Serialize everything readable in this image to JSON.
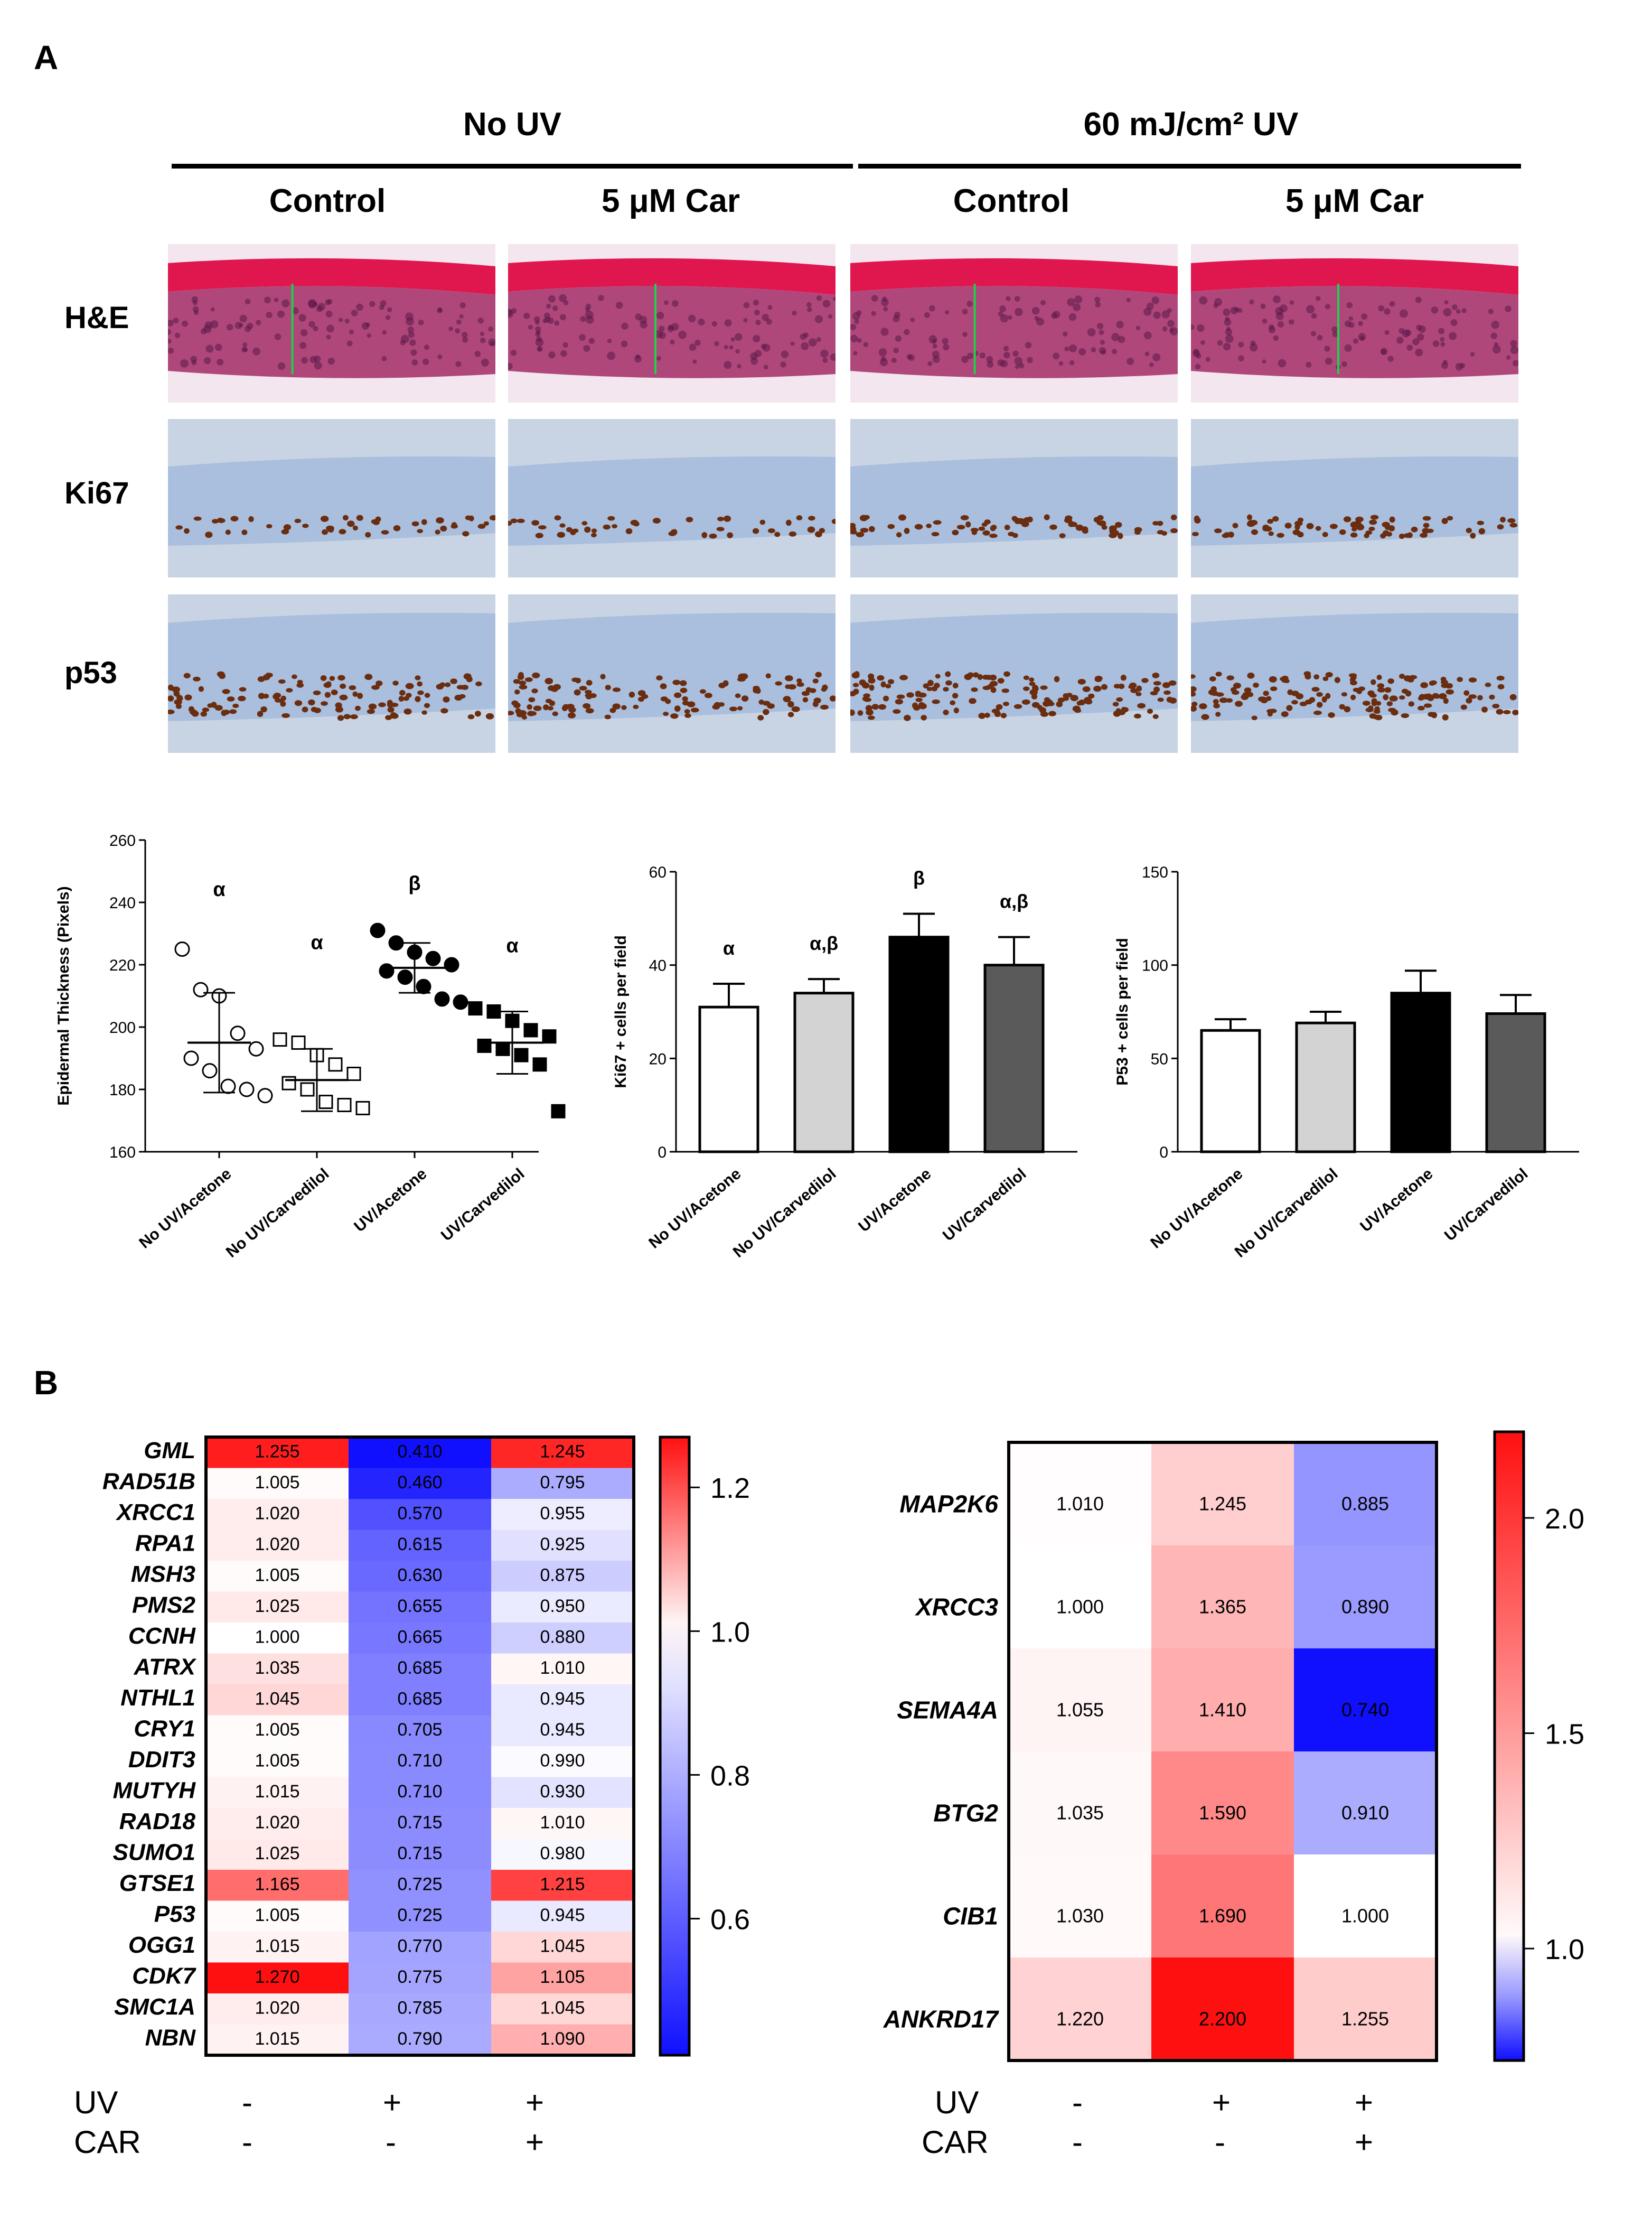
{
  "panel_a": {
    "letter": "A",
    "group_headers": [
      "No UV",
      "60 mJ/cm² UV"
    ],
    "column_headers": [
      "Control",
      "5 μM Car",
      "Control",
      "5 μM Car"
    ],
    "row_labels": [
      "H&E",
      "Ki67",
      "p53"
    ]
  },
  "panel_b": {
    "letter": "B",
    "row_labels": {
      "uv": "UV",
      "car": "CAR"
    },
    "left_conditions": {
      "uv": [
        "-",
        "+",
        "+"
      ],
      "car": [
        "-",
        "-",
        "+"
      ]
    },
    "right_conditions": {
      "uv": [
        "-",
        "+",
        "+"
      ],
      "car": [
        "-",
        "-",
        "+"
      ]
    }
  },
  "colors": {
    "he_top": "#e0174e",
    "he_body": "#b0477a",
    "ihc_bg": "#c8d4e3",
    "ihc_epi": "#a9bfdd",
    "nuclei": "#6b2d10",
    "bar_light": "#d3d3d3",
    "bar_dark": "#5a5a5a",
    "heat_red": "#ff1010",
    "heat_blue": "#1010ff"
  },
  "chart_data": [
    {
      "type": "scatter",
      "ylabel": "Epidermal Thickness (Pixels)",
      "ylim": [
        160,
        260
      ],
      "yticks": [
        160,
        180,
        200,
        220,
        240,
        260
      ],
      "categories": [
        "No UV/Acetone",
        "No UV/Carvedilol",
        "UV/Acetone",
        "UV/Carvedilol"
      ],
      "markers": [
        "open-circle",
        "open-square",
        "filled-circle",
        "filled-square"
      ],
      "means": [
        195,
        183,
        219,
        195
      ],
      "sd": [
        16,
        10,
        8,
        10
      ],
      "letters": [
        "α",
        "α",
        "β",
        "α"
      ],
      "points": [
        [
          225,
          212,
          210,
          198,
          193,
          190,
          186,
          181,
          180,
          178
        ],
        [
          196,
          195,
          191,
          188,
          185,
          182,
          180,
          176,
          175,
          174
        ],
        [
          231,
          227,
          224,
          222,
          220,
          218,
          216,
          213,
          209,
          208
        ],
        [
          206,
          205,
          202,
          199,
          197,
          194,
          193,
          191,
          188,
          173
        ]
      ]
    },
    {
      "type": "bar",
      "ylabel": "Ki67 + cells per field",
      "ylim": [
        0,
        60
      ],
      "yticks": [
        0,
        20,
        40,
        60
      ],
      "categories": [
        "No UV/Acetone",
        "No UV/Carvedilol",
        "UV/Acetone",
        "UV/Carvedilol"
      ],
      "values": [
        31,
        34,
        46,
        40
      ],
      "errors": [
        5,
        3,
        5,
        6
      ],
      "letters": [
        "α",
        "α,β",
        "β",
        "α,β"
      ]
    },
    {
      "type": "bar",
      "ylabel": "P53 + cells per field",
      "ylim": [
        0,
        150
      ],
      "yticks": [
        0,
        50,
        100,
        150
      ],
      "categories": [
        "No UV/Acetone",
        "No UV/Carvedilol",
        "UV/Acetone",
        "UV/Carvedilol"
      ],
      "values": [
        65,
        69,
        85,
        74
      ],
      "errors": [
        6,
        6,
        12,
        10
      ]
    },
    {
      "type": "heatmap",
      "genes": [
        "GML",
        "RAD51B",
        "XRCC1",
        "RPA1",
        "MSH3",
        "PMS2",
        "CCNH",
        "ATRX",
        "NTHL1",
        "CRY1",
        "DDIT3",
        "MUTYH",
        "RAD18",
        "SUMO1",
        "GTSE1",
        "P53",
        "OGG1",
        "CDK7",
        "SMC1A",
        "NBN"
      ],
      "values": [
        [
          "1.255",
          "0.410",
          "1.245"
        ],
        [
          "1.005",
          "0.460",
          "0.795"
        ],
        [
          "1.020",
          "0.570",
          "0.955"
        ],
        [
          "1.020",
          "0.615",
          "0.925"
        ],
        [
          "1.005",
          "0.630",
          "0.875"
        ],
        [
          "1.025",
          "0.655",
          "0.950"
        ],
        [
          "1.000",
          "0.665",
          "0.880"
        ],
        [
          "1.035",
          "0.685",
          "1.010"
        ],
        [
          "1.045",
          "0.685",
          "0.945"
        ],
        [
          "1.005",
          "0.705",
          "0.945"
        ],
        [
          "1.005",
          "0.710",
          "0.990"
        ],
        [
          "1.015",
          "0.710",
          "0.930"
        ],
        [
          "1.020",
          "0.715",
          "1.010"
        ],
        [
          "1.025",
          "0.715",
          "0.980"
        ],
        [
          "1.165",
          "0.725",
          "1.215"
        ],
        [
          "1.005",
          "0.725",
          "0.945"
        ],
        [
          "1.015",
          "0.770",
          "1.045"
        ],
        [
          "1.270",
          "0.775",
          "1.105"
        ],
        [
          "1.020",
          "0.785",
          "1.045"
        ],
        [
          "1.015",
          "0.790",
          "1.090"
        ]
      ],
      "vmin": 0.41,
      "vcenter": 1.0,
      "vmax": 1.27,
      "scale_ticks": [
        "1.2",
        "1.0",
        "0.8",
        "0.6"
      ],
      "scale_tick_values": [
        1.2,
        1.0,
        0.8,
        0.6
      ]
    },
    {
      "type": "heatmap",
      "genes": [
        "MAP2K6",
        "XRCC3",
        "SEMA4A",
        "BTG2",
        "CIB1",
        "ANKRD17"
      ],
      "values": [
        [
          "1.010",
          "1.245",
          "0.885"
        ],
        [
          "1.000",
          "1.365",
          "0.890"
        ],
        [
          "1.055",
          "1.410",
          "0.740"
        ],
        [
          "1.035",
          "1.590",
          "0.910"
        ],
        [
          "1.030",
          "1.690",
          "1.000"
        ],
        [
          "1.220",
          "2.200",
          "1.255"
        ]
      ],
      "vmin": 0.74,
      "vcenter": 1.0,
      "vmax": 2.2,
      "scale_ticks": [
        "2.0",
        "1.5",
        "1.0"
      ],
      "scale_tick_values": [
        2.0,
        1.5,
        1.0
      ]
    }
  ]
}
